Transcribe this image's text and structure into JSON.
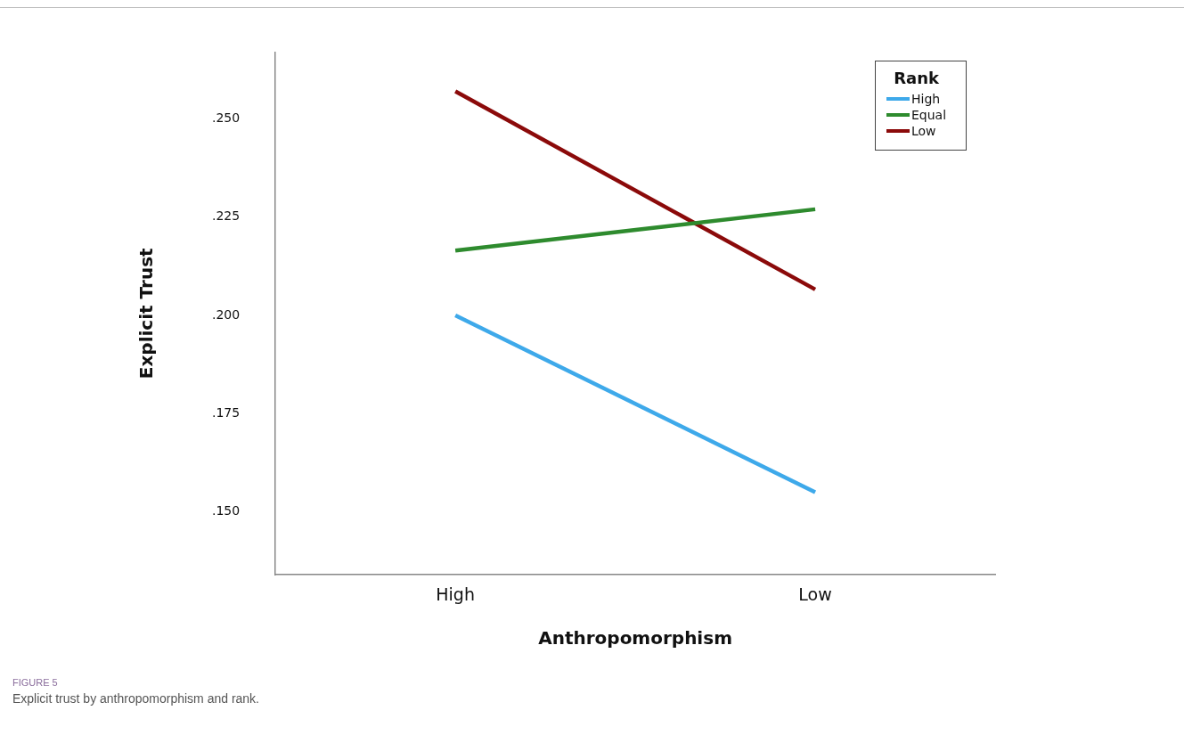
{
  "chart_data": {
    "type": "line",
    "xlabel": "Anthropomorphism",
    "ylabel": "Explicit Trust",
    "legend_title": "Rank",
    "categories": [
      "High",
      "Low"
    ],
    "series": [
      {
        "name": "High",
        "color": "#3ea9ea",
        "values": [
          0.2,
          0.155
        ]
      },
      {
        "name": "Equal",
        "color": "#2e8b2e",
        "values": [
          0.2165,
          0.227
        ]
      },
      {
        "name": "Low",
        "color": "#8b0a0a",
        "values": [
          0.257,
          0.2066
        ]
      }
    ],
    "ylim": [
      0.134,
      0.267
    ],
    "yticks": [
      {
        "value": 0.15,
        "label": ".150"
      },
      {
        "value": 0.175,
        "label": ".175"
      },
      {
        "value": 0.2,
        "label": ".200"
      },
      {
        "value": 0.225,
        "label": ".225"
      },
      {
        "value": 0.25,
        "label": ".250"
      }
    ],
    "grid": false,
    "legend": "top right",
    "marker": "none",
    "line_style": "solid",
    "annotations": [
      "FIGURE 5",
      "Explicit trust by anthropomorphism and rank."
    ]
  }
}
